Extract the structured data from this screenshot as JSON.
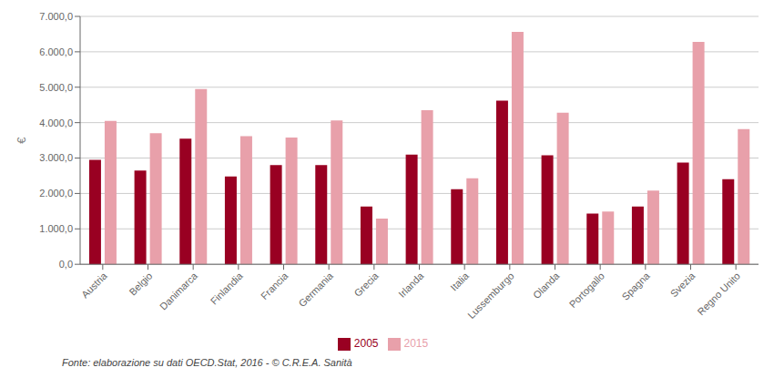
{
  "chart_data": {
    "type": "bar",
    "categories": [
      "Austria",
      "Belgio",
      "Danimarca",
      "Finlandia",
      "Francia",
      "Germania",
      "Grecia",
      "Irlanda",
      "Italia",
      "Lussemburgo",
      "Olanda",
      "Portogallo",
      "Spagna",
      "Svezia",
      "Regno Unito"
    ],
    "series": [
      {
        "name": "2005",
        "color": "#990022",
        "values": [
          2950,
          2650,
          3550,
          2480,
          2800,
          2800,
          1630,
          3100,
          2120,
          4620,
          3080,
          1430,
          1630,
          2870,
          2400
        ]
      },
      {
        "name": "2015",
        "color": "#e8a0aa",
        "values": [
          4050,
          3700,
          4950,
          3620,
          3580,
          4060,
          1290,
          4350,
          2430,
          6560,
          4280,
          1490,
          2080,
          6280,
          3820
        ]
      }
    ],
    "y_label": "€",
    "ylim": [
      0,
      7000
    ],
    "yticks": [
      {
        "value": 0,
        "label": "0,0"
      },
      {
        "value": 1000,
        "label": "1.000,0"
      },
      {
        "value": 2000,
        "label": "2.000,0"
      },
      {
        "value": 3000,
        "label": "3.000,0"
      },
      {
        "value": 4000,
        "label": "4.000,0"
      },
      {
        "value": 5000,
        "label": "5.000,0"
      },
      {
        "value": 6000,
        "label": "6.000,0"
      },
      {
        "value": 7000,
        "label": "7.000,0"
      }
    ],
    "grid": true,
    "legend": "bottom",
    "annotations": [
      "Fonte: elaborazione su dati OECD.Stat, 2016 - © C.R.E.A. Sanità"
    ]
  }
}
